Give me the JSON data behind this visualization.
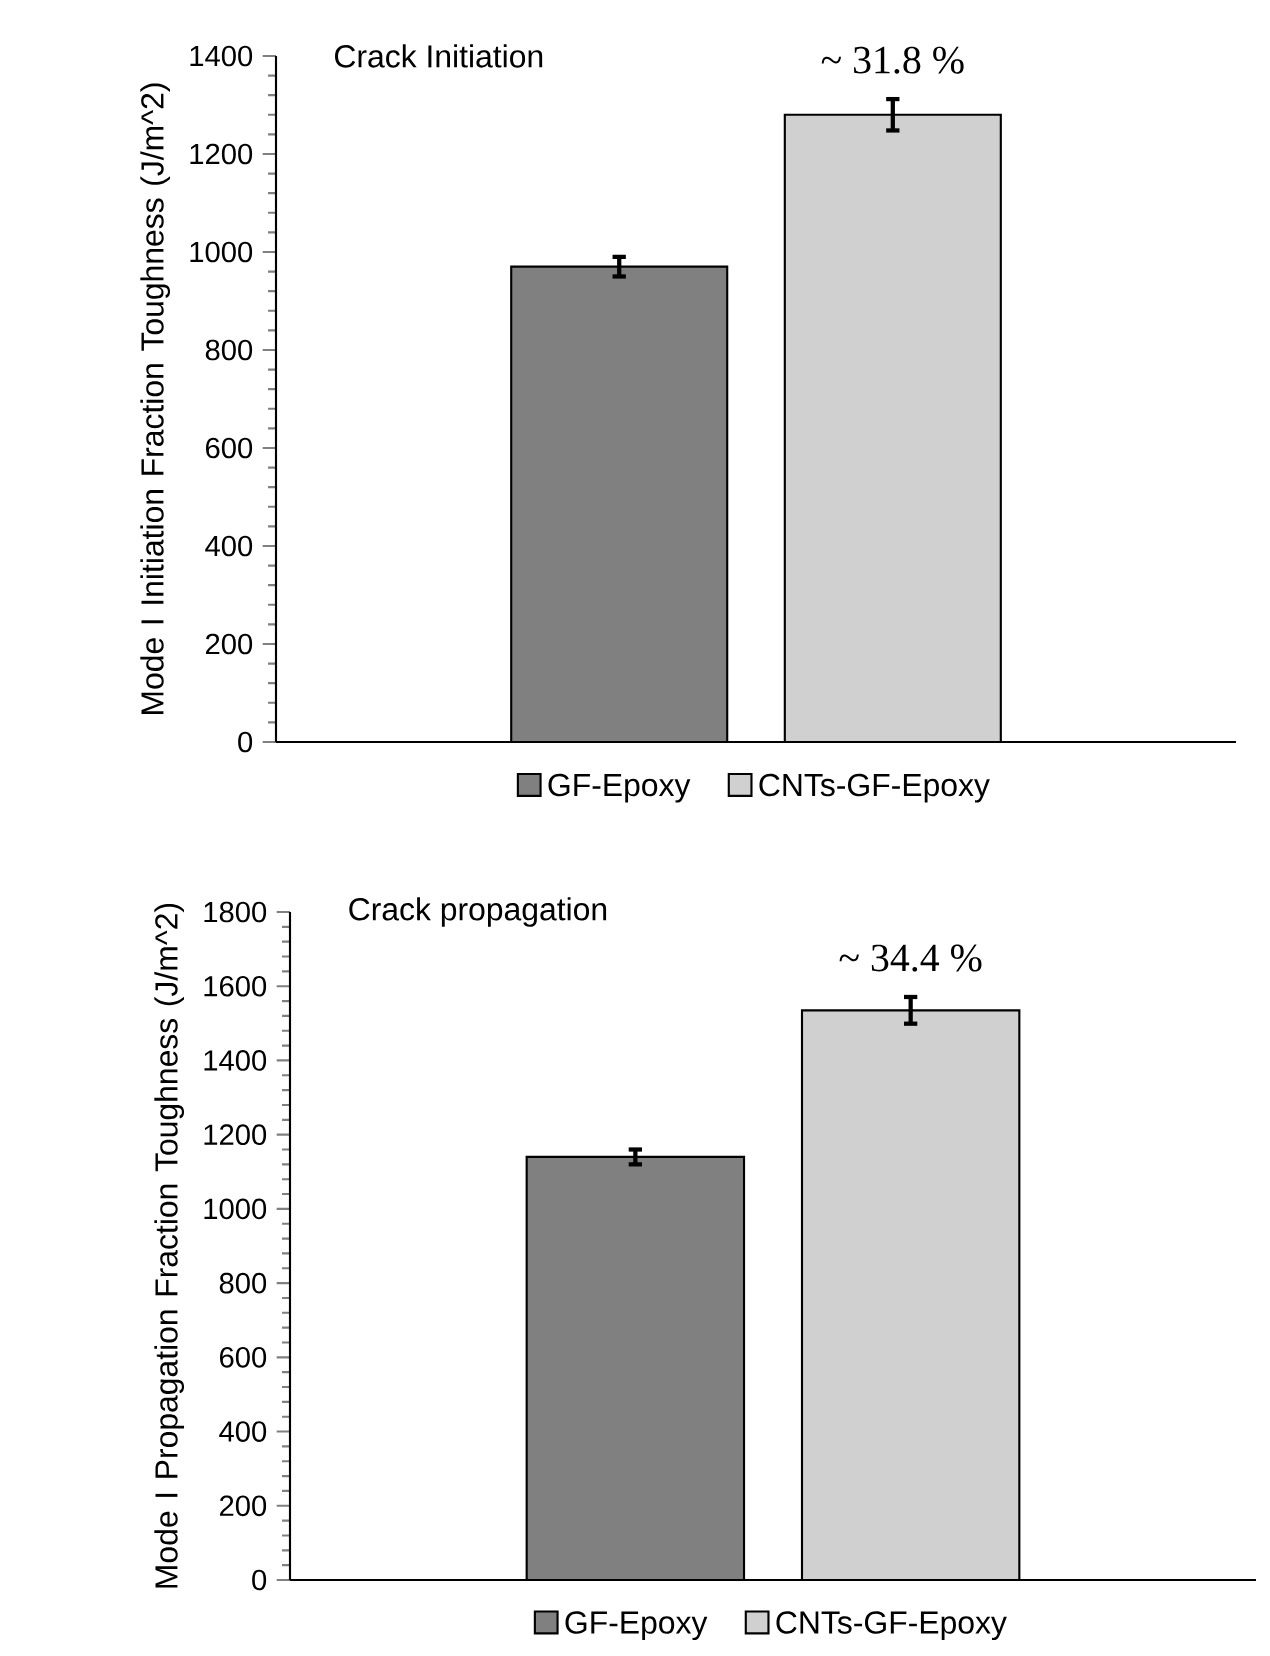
{
  "chart_data": [
    {
      "type": "bar",
      "title": "Crack Initiation",
      "ylabel": "Mode I Initiation Fraction Toughness (J/m^2)",
      "categories": [
        null
      ],
      "series": [
        {
          "name": "GF-Epoxy",
          "color": "#808080",
          "values": [
            970
          ],
          "errors": [
            20
          ]
        },
        {
          "name": "CNTs-GF-Epoxy",
          "color": "#d0d0d0",
          "values": [
            1280
          ],
          "errors": [
            32
          ]
        }
      ],
      "ylim": [
        0,
        1400
      ],
      "yticks": [
        0,
        200,
        400,
        600,
        800,
        1000,
        1200,
        1400
      ],
      "annotations": [
        "~ 31.8 %"
      ],
      "legend": "bottom"
    },
    {
      "type": "bar",
      "title": "Crack propagation",
      "ylabel": "Mode I Propagation Fraction Toughness (J/m^2)",
      "categories": [
        null
      ],
      "series": [
        {
          "name": "GF-Epoxy",
          "color": "#808080",
          "values": [
            1140
          ],
          "errors": [
            20
          ]
        },
        {
          "name": "CNTs-GF-Epoxy",
          "color": "#d0d0d0",
          "values": [
            1535
          ],
          "errors": [
            36
          ]
        }
      ],
      "ylim": [
        0,
        1800
      ],
      "yticks": [
        0,
        200,
        400,
        600,
        800,
        1000,
        1200,
        1400,
        1600,
        1800
      ],
      "annotations": [
        "~ 34.4 %"
      ],
      "legend": "bottom"
    }
  ]
}
